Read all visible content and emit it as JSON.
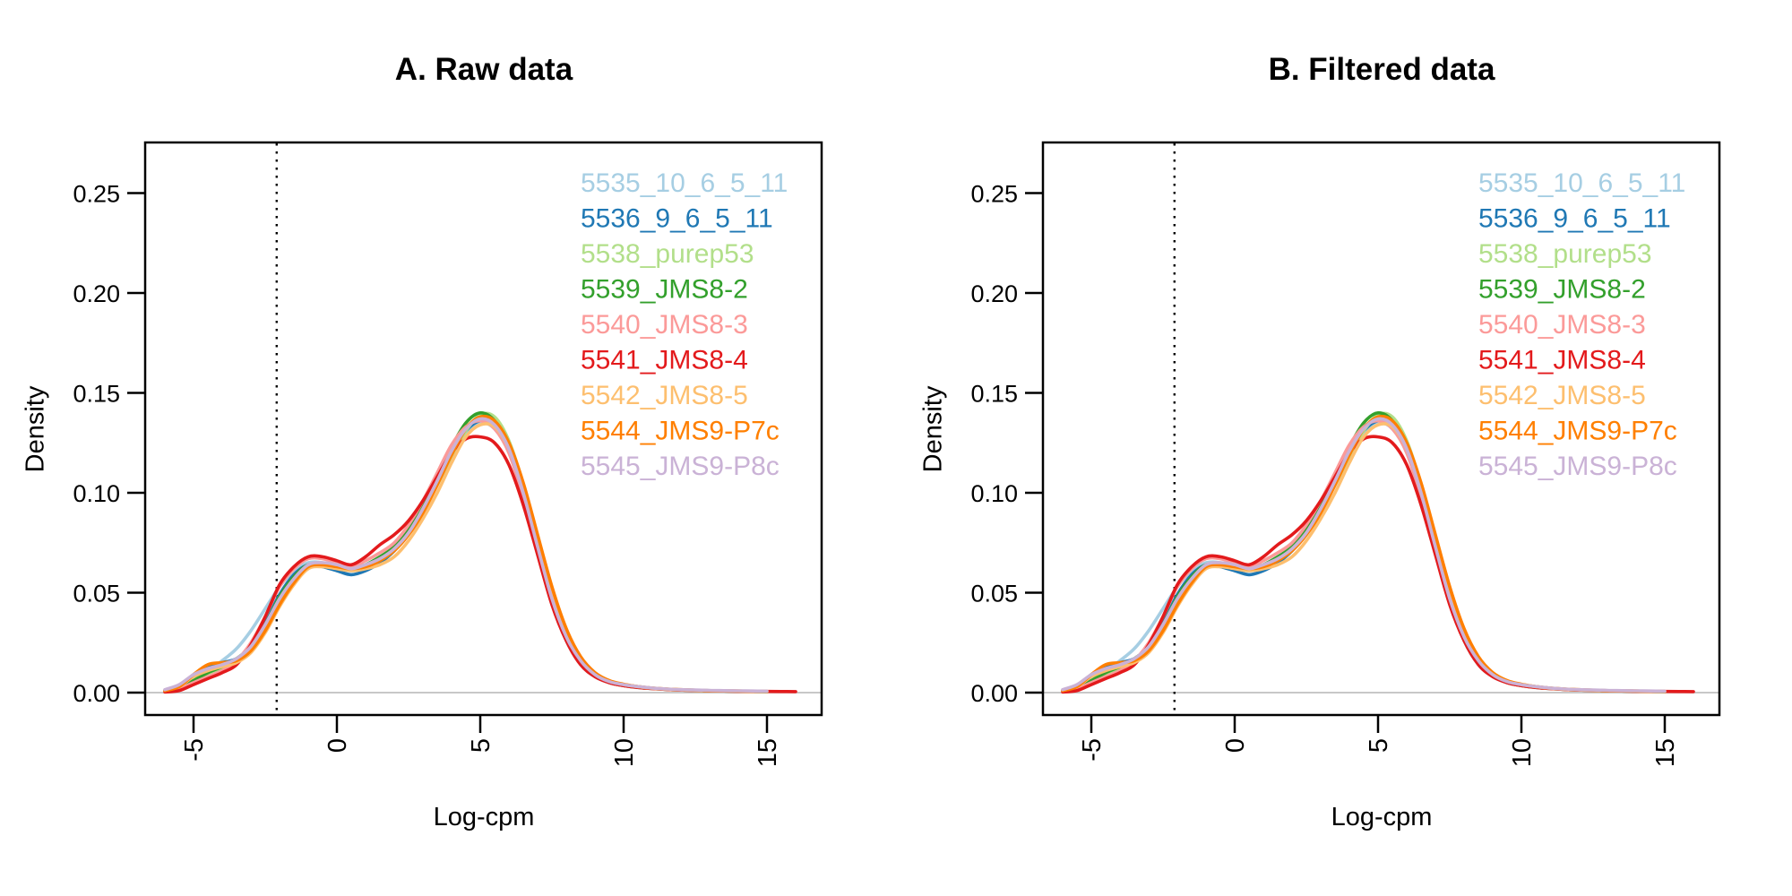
{
  "chart_data": {
    "type": "line",
    "panels": [
      {
        "title": "A. Raw data"
      },
      {
        "title": "B. Filtered data"
      }
    ],
    "panels_note": "both panels display identical density curves",
    "xlabel": "Log-cpm",
    "ylabel": "Density",
    "xlim": [
      -6.7,
      16.9
    ],
    "ylim": [
      0,
      0.27
    ],
    "x_ticks": [
      -5,
      0,
      5,
      10,
      15
    ],
    "x_tick_labels": [
      "-5",
      "0",
      "5",
      "10",
      "15"
    ],
    "y_ticks": [
      0,
      0.05,
      0.1,
      0.15,
      0.2,
      0.25
    ],
    "y_tick_labels": [
      "0.00",
      "0.05",
      "0.10",
      "0.15",
      "0.20",
      "0.25"
    ],
    "grid": false,
    "legend_position": "topright",
    "cutoff_line": {
      "x": -2.1,
      "style": "dotted",
      "color": "#000000"
    },
    "zero_line": {
      "y": 0,
      "color": "#c0c0c0"
    },
    "x": [
      -6,
      -5.5,
      -5,
      -4.5,
      -4,
      -3.5,
      -3,
      -2.5,
      -2,
      -1.5,
      -1,
      -0.5,
      0,
      0.5,
      1,
      1.5,
      2,
      2.5,
      3,
      3.5,
      4,
      4.5,
      5,
      5.5,
      6,
      6.5,
      7,
      7.5,
      8,
      8.5,
      9,
      9.5,
      10,
      10.5,
      11,
      11.5,
      12,
      12.5,
      13,
      13.5,
      14,
      14.5,
      15,
      15.5,
      16
    ],
    "series": [
      {
        "name": "5535_10_6_5_11",
        "color": "#A6CEE3",
        "y": [
          0.001,
          0.003,
          0.008,
          0.011,
          0.016,
          0.022,
          0.031,
          0.042,
          0.053,
          0.061,
          0.065,
          0.065,
          0.063,
          0.061,
          0.063,
          0.066,
          0.071,
          0.08,
          0.092,
          0.106,
          0.12,
          0.13,
          0.135,
          0.132,
          0.12,
          0.098,
          0.071,
          0.045,
          0.026,
          0.014,
          0.008,
          0.005,
          0.0035,
          0.0025,
          0.002,
          0.0016,
          0.0013,
          0.0011,
          0.0009,
          0.0008,
          0.0007,
          0.0006,
          0.0005,
          null,
          null
        ]
      },
      {
        "name": "5536_9_6_5_11",
        "color": "#1F78B4",
        "y": [
          0.001,
          0.003,
          0.009,
          0.013,
          0.015,
          0.017,
          0.023,
          0.035,
          0.049,
          0.059,
          0.064,
          0.063,
          0.061,
          0.059,
          0.061,
          0.065,
          0.071,
          0.08,
          0.092,
          0.106,
          0.12,
          0.131,
          0.136,
          0.133,
          0.121,
          0.099,
          0.072,
          0.046,
          0.027,
          0.015,
          0.009,
          0.0055,
          0.004,
          0.003,
          0.0022,
          0.0017,
          0.0014,
          0.0012,
          0.001,
          0.0008,
          0.0007,
          0.0006,
          0.0005,
          null,
          null
        ]
      },
      {
        "name": "5538_purep53",
        "color": "#B2DF8A",
        "y": [
          0.001,
          0.002,
          0.006,
          0.009,
          0.012,
          0.016,
          0.022,
          0.033,
          0.046,
          0.057,
          0.063,
          0.064,
          0.063,
          0.062,
          0.064,
          0.067,
          0.072,
          0.08,
          0.091,
          0.104,
          0.118,
          0.131,
          0.139,
          0.138,
          0.126,
          0.104,
          0.076,
          0.049,
          0.029,
          0.016,
          0.009,
          0.0055,
          0.004,
          0.003,
          0.0022,
          0.0017,
          0.0014,
          0.0011,
          0.0009,
          0.0008,
          0.0007,
          0.0006,
          0.0005,
          null,
          null
        ]
      },
      {
        "name": "5539_JMS8-2",
        "color": "#33A02C",
        "y": [
          0.001,
          0.002,
          0.006,
          0.01,
          0.013,
          0.017,
          0.023,
          0.034,
          0.048,
          0.058,
          0.064,
          0.064,
          0.063,
          0.062,
          0.064,
          0.068,
          0.073,
          0.082,
          0.094,
          0.108,
          0.123,
          0.135,
          0.14,
          0.136,
          0.123,
          0.101,
          0.074,
          0.047,
          0.028,
          0.015,
          0.0085,
          0.005,
          0.0035,
          0.0026,
          0.002,
          0.0016,
          0.0013,
          0.0011,
          0.0009,
          0.0008,
          0.0007,
          0.0006,
          0.0005,
          null,
          null
        ]
      },
      {
        "name": "5540_JMS8-3",
        "color": "#FB9A99",
        "y": [
          0.0005,
          0.002,
          0.005,
          0.008,
          0.011,
          0.016,
          0.025,
          0.038,
          0.053,
          0.062,
          0.067,
          0.067,
          0.065,
          0.063,
          0.066,
          0.07,
          0.075,
          0.084,
          0.096,
          0.11,
          0.124,
          0.133,
          0.136,
          0.132,
          0.12,
          0.098,
          0.072,
          0.046,
          0.027,
          0.015,
          0.0085,
          0.005,
          0.0035,
          0.0026,
          0.002,
          0.0016,
          0.0013,
          0.0011,
          0.0009,
          0.0008,
          0.0007,
          0.0006,
          0.0005,
          null,
          null
        ]
      },
      {
        "name": "5541_JMS8-4",
        "color": "#E31A1C",
        "y": [
          0.0003,
          0.001,
          0.004,
          0.007,
          0.01,
          0.014,
          0.024,
          0.038,
          0.054,
          0.063,
          0.068,
          0.068,
          0.066,
          0.064,
          0.068,
          0.074,
          0.079,
          0.086,
          0.096,
          0.108,
          0.12,
          0.127,
          0.128,
          0.125,
          0.114,
          0.094,
          0.069,
          0.044,
          0.026,
          0.014,
          0.008,
          0.005,
          0.0035,
          0.0026,
          0.002,
          0.0016,
          0.0013,
          0.0011,
          0.0009,
          0.0008,
          0.0007,
          0.00065,
          0.0006,
          0.00055,
          0.0005
        ]
      },
      {
        "name": "5542_JMS8-5",
        "color": "#FDBF6F",
        "y": [
          0.001,
          0.003,
          0.008,
          0.011,
          0.013,
          0.015,
          0.02,
          0.03,
          0.043,
          0.054,
          0.062,
          0.063,
          0.062,
          0.061,
          0.062,
          0.064,
          0.068,
          0.076,
          0.087,
          0.1,
          0.115,
          0.128,
          0.134,
          0.133,
          0.122,
          0.101,
          0.075,
          0.049,
          0.03,
          0.017,
          0.01,
          0.006,
          0.004,
          0.003,
          0.0022,
          0.0017,
          0.0014,
          0.0012,
          0.001,
          0.0009,
          0.0008,
          0.0007,
          0.0006,
          null,
          null
        ]
      },
      {
        "name": "5544_JMS9-P7c",
        "color": "#FF7F00",
        "y": [
          0.001,
          0.003,
          0.009,
          0.014,
          0.015,
          0.016,
          0.021,
          0.031,
          0.044,
          0.055,
          0.063,
          0.064,
          0.063,
          0.062,
          0.063,
          0.066,
          0.071,
          0.079,
          0.09,
          0.104,
          0.119,
          0.132,
          0.138,
          0.136,
          0.125,
          0.105,
          0.079,
          0.053,
          0.032,
          0.018,
          0.01,
          0.006,
          0.0042,
          0.003,
          0.0023,
          0.0018,
          0.0015,
          0.0012,
          0.001,
          0.0009,
          0.0008,
          0.0007,
          0.0006,
          null,
          null
        ]
      },
      {
        "name": "5545_JMS9-P8c",
        "color": "#CAB2D6",
        "y": [
          0.0015,
          0.004,
          0.009,
          0.012,
          0.014,
          0.017,
          0.023,
          0.034,
          0.047,
          0.057,
          0.064,
          0.065,
          0.064,
          0.062,
          0.064,
          0.067,
          0.072,
          0.08,
          0.092,
          0.106,
          0.121,
          0.132,
          0.137,
          0.134,
          0.122,
          0.1,
          0.073,
          0.047,
          0.028,
          0.016,
          0.009,
          0.0055,
          0.004,
          0.003,
          0.0023,
          0.0018,
          0.0015,
          0.0013,
          0.0011,
          0.001,
          0.0009,
          0.0008,
          0.0007,
          null,
          null
        ]
      }
    ]
  }
}
